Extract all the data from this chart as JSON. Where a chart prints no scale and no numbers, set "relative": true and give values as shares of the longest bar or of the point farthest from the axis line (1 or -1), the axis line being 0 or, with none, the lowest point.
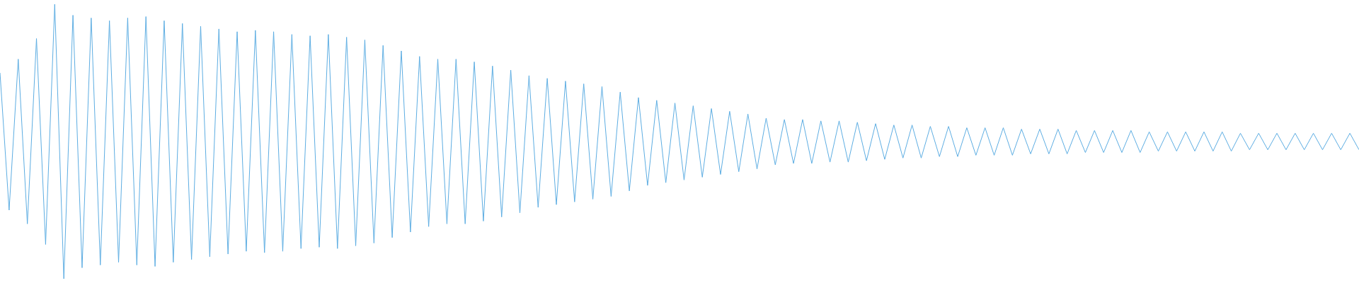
{
  "chart_data": {
    "type": "line",
    "relative": true,
    "marker": "none",
    "line_style": "solid",
    "legend": false,
    "categories": [
      null,
      null,
      null,
      null,
      null,
      null,
      null,
      null,
      null,
      null,
      null,
      null,
      null,
      null,
      null,
      null,
      null,
      null,
      null,
      null,
      null,
      null,
      null,
      null,
      null,
      null,
      null,
      null,
      null,
      null,
      null,
      null,
      null,
      null,
      null,
      null,
      null,
      null,
      null,
      null,
      null,
      null,
      null,
      null,
      null,
      null,
      null,
      null,
      null,
      null,
      null,
      null,
      null,
      null,
      null,
      null,
      null,
      null,
      null,
      null,
      null,
      null,
      null,
      null,
      null,
      null,
      null,
      null,
      null,
      null,
      null,
      null,
      null,
      null,
      null,
      null,
      null,
      null,
      null,
      null,
      null,
      null,
      null,
      null,
      null,
      null,
      null,
      null,
      null,
      null,
      null,
      null,
      null,
      null,
      null,
      null,
      null,
      null,
      null,
      null,
      null,
      null,
      null,
      null,
      null,
      null,
      null,
      null,
      null,
      null,
      null,
      null,
      null,
      null,
      null,
      null,
      null,
      null,
      null,
      null,
      null,
      null,
      null,
      null,
      null,
      null,
      null,
      null,
      null,
      null,
      null,
      null,
      null,
      null,
      null,
      null,
      null,
      null,
      null,
      null,
      null,
      null,
      null,
      null,
      null,
      null,
      null,
      null,
      null,
      null
    ],
    "series": [
      {
        "color": "#5dade2",
        "values": [
          0.75,
          0.25,
          0.8,
          0.2,
          0.875,
          0.125,
          1,
          0,
          0.96,
          0.04,
          0.95,
          0.05,
          0.94,
          0.06,
          0.95,
          0.05,
          0.955,
          0.045,
          0.94,
          0.06,
          0.93,
          0.07,
          0.92,
          0.08,
          0.91,
          0.09,
          0.9,
          0.1,
          0.905,
          0.095,
          0.9,
          0.1,
          0.89,
          0.11,
          0.885,
          0.115,
          0.89,
          0.11,
          0.88,
          0.12,
          0.87,
          0.13,
          0.85,
          0.15,
          0.83,
          0.17,
          0.81,
          0.19,
          0.8,
          0.2,
          0.8,
          0.2,
          0.79,
          0.21,
          0.775,
          0.225,
          0.76,
          0.24,
          0.74,
          0.26,
          0.73,
          0.27,
          0.72,
          0.28,
          0.71,
          0.29,
          0.7,
          0.3,
          0.68,
          0.32,
          0.66,
          0.34,
          0.65,
          0.35,
          0.64,
          0.36,
          0.63,
          0.37,
          0.62,
          0.38,
          0.61,
          0.39,
          0.6,
          0.4,
          0.585,
          0.415,
          0.58,
          0.42,
          0.58,
          0.42,
          0.575,
          0.425,
          0.575,
          0.425,
          0.57,
          0.43,
          0.565,
          0.435,
          0.56,
          0.44,
          0.56,
          0.44,
          0.555,
          0.445,
          0.555,
          0.445,
          0.55,
          0.45,
          0.55,
          0.45,
          0.55,
          0.45,
          0.545,
          0.455,
          0.545,
          0.455,
          0.545,
          0.455,
          0.54,
          0.46,
          0.54,
          0.46,
          0.54,
          0.46,
          0.54,
          0.46,
          0.535,
          0.465,
          0.535,
          0.465,
          0.535,
          0.465,
          0.535,
          0.465,
          0.535,
          0.465,
          0.53,
          0.47,
          0.53,
          0.47,
          0.53,
          0.47,
          0.53,
          0.47,
          0.53,
          0.47,
          0.53,
          0.47,
          0.53,
          0.47
        ]
      }
    ]
  }
}
